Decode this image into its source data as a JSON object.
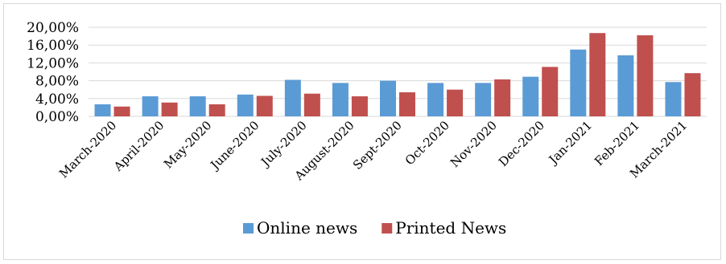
{
  "chart_data": {
    "type": "bar",
    "categories": [
      "March-2020",
      "April-2020",
      "May-2020",
      "June-2020",
      "July-2020",
      "August-2020",
      "Sept-2020",
      "Oct-2020",
      "Nov-2020",
      "Dec-2020",
      "Jan-2021",
      "Feb-2021",
      "March-2021"
    ],
    "series": [
      {
        "name": "Online news",
        "color": "#5b9bd5",
        "values": [
          2.7,
          4.5,
          4.5,
          4.9,
          8.2,
          7.5,
          8.0,
          7.5,
          7.5,
          8.9,
          15.0,
          13.7,
          7.7
        ]
      },
      {
        "name": "Printed News",
        "color": "#c0504d",
        "values": [
          2.2,
          3.1,
          2.7,
          4.6,
          5.1,
          4.5,
          5.4,
          6.0,
          8.3,
          11.1,
          18.7,
          18.2,
          9.7
        ]
      }
    ],
    "y_ticks": [
      "0,00%",
      "4,00%",
      "8,00%",
      "12,00%",
      "16,00%",
      "20,00%"
    ],
    "ylim": [
      0,
      20
    ],
    "ylabel": "",
    "xlabel": "",
    "title": "",
    "grid": true,
    "legend_position": "bottom"
  }
}
